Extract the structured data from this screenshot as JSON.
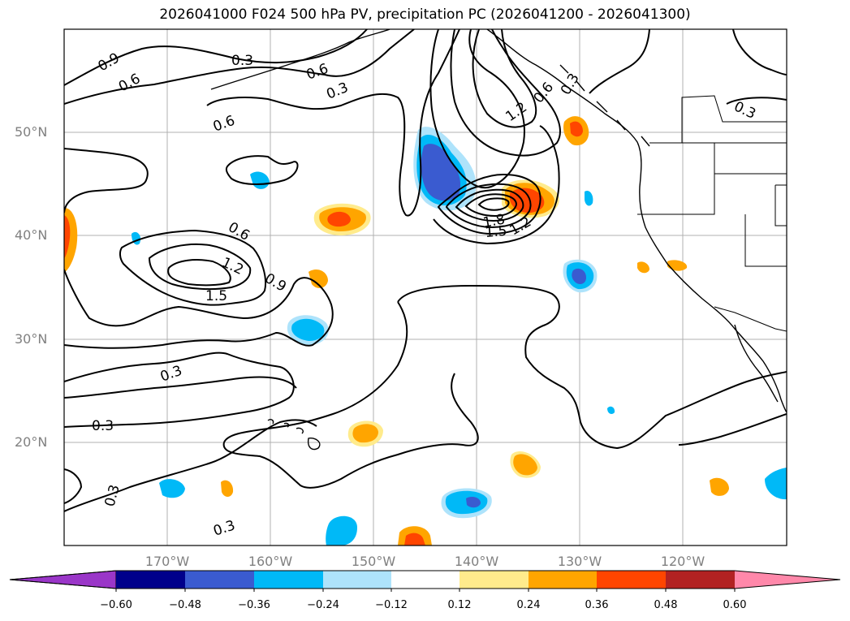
{
  "title": "2026041000 F024 500 hPa PV, precipitation PC (2026041200 - 2026041300)",
  "map": {
    "projection": "plate-carree",
    "lon_range": [
      -180,
      -110
    ],
    "lat_range": [
      10,
      60
    ],
    "gridlines": true,
    "lat_ticks": [
      "50°N",
      "40°N",
      "30°N",
      "20°N"
    ],
    "lon_ticks": [
      "170°W",
      "160°W",
      "150°W",
      "140°W",
      "130°W",
      "120°W"
    ],
    "pv_contour_labels": [
      "0.9",
      "0.6",
      "0.3",
      "0.6",
      "0.3",
      "0.6",
      "0.3",
      "1.2",
      "0.6",
      "0.3",
      "0.6",
      "1.2",
      "0.9",
      "1.5",
      "1.8",
      "1.5",
      "1.2",
      "0.3",
      "0.3",
      "0.3",
      "0.3"
    ]
  },
  "colorbar": {
    "colors": [
      "#9a36c8",
      "#00008b",
      "#3a5bd0",
      "#00b9f7",
      "#aee3fb",
      "#ffffff",
      "#ffeb8c",
      "#ffa500",
      "#ff4500",
      "#b22222",
      "#ff88aa"
    ],
    "ticks": [
      "−0.60",
      "−0.48",
      "−0.36",
      "−0.24",
      "−0.12",
      "0.12",
      "0.24",
      "0.36",
      "0.48",
      "0.60"
    ],
    "extend": "both"
  },
  "colors": {
    "contour": "#000000",
    "grid": "#b0b0b0",
    "coast": "#000000"
  }
}
